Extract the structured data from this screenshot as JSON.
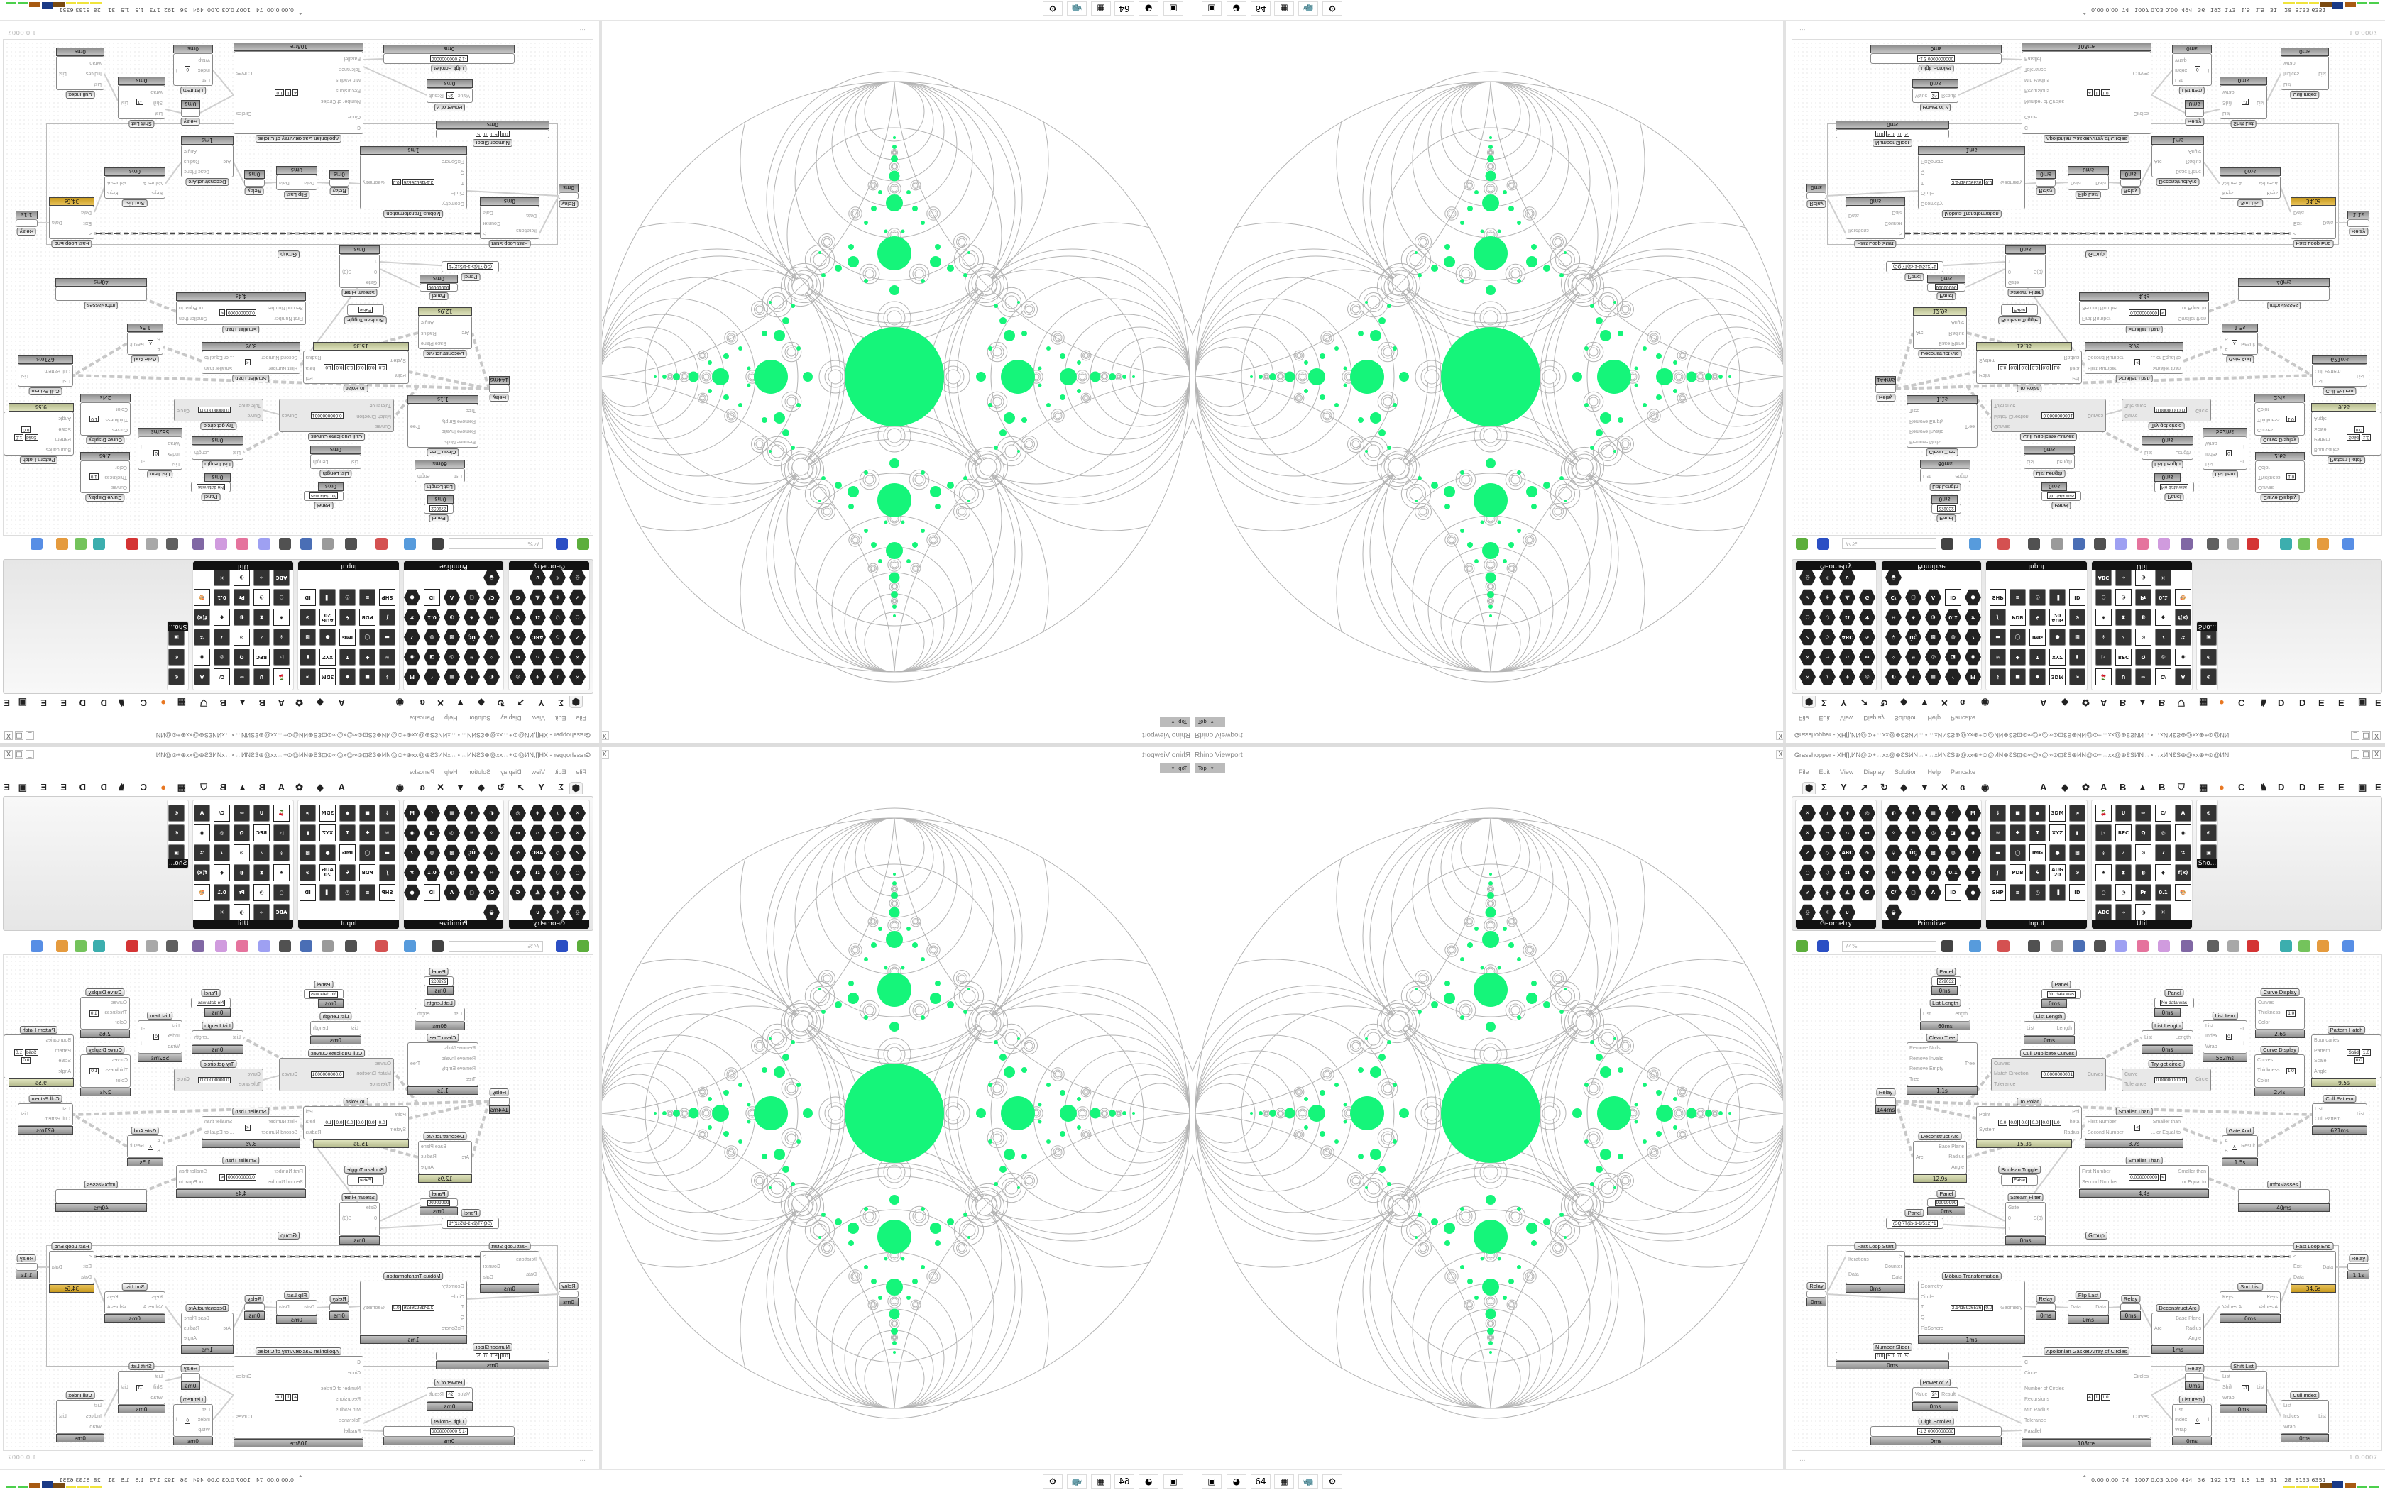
{
  "rhino": {
    "title": "Rhino Viewport",
    "close": "X",
    "view": "Top",
    "view_arrow": "▾"
  },
  "gh": {
    "title": "Grasshopper - XH[],ИN@⊙+↔xx@⊕ƐSИN↔×↔xИNƐS⊕@xx⊕+⊙@ИN⊕ƐS⊡⊙∞@x@∞⊙⊡ƐS⊕ИN@⊙+↔xx@⊕ƐSИN↔×↔xИNƐS⊕@xx⊕+⊙@ИN,",
    "window_controls": [
      "_",
      "□",
      "X"
    ],
    "menu": [
      "File",
      "Edit",
      "View",
      "Display",
      "Solution",
      "Help",
      "Pancake"
    ],
    "tabs": [
      {
        "icon": "params-hex-icon",
        "glyph": "⬢"
      },
      {
        "icon": "maths-sigma-icon",
        "glyph": "Σ"
      },
      {
        "icon": "sets-tree-icon",
        "glyph": "Y"
      },
      {
        "icon": "vector-arrow-icon",
        "glyph": "➚"
      },
      {
        "icon": "curve-icon",
        "glyph": "↻"
      },
      {
        "icon": "surface-icon",
        "glyph": "◆"
      },
      {
        "icon": "mesh-icon",
        "glyph": "▼"
      },
      {
        "icon": "intersect-icon",
        "glyph": "✕"
      },
      {
        "icon": "transform-icon",
        "glyph": "ɞ"
      },
      {
        "icon": "display-eye-icon",
        "glyph": "◉"
      },
      {
        "glyph": "A"
      },
      {
        "icon": "crystal-icon",
        "glyph": "◆"
      },
      {
        "icon": "flower-icon",
        "glyph": "✿"
      },
      {
        "glyph": "A"
      },
      {
        "glyph": "B"
      },
      {
        "icon": "mountain-icon",
        "glyph": "▲"
      },
      {
        "glyph": "B"
      },
      {
        "icon": "shield-icon",
        "glyph": "⛉"
      },
      {
        "icon": "grid-icon",
        "glyph": "▦"
      },
      {
        "icon": "orange-circle-icon",
        "glyph": "●"
      },
      {
        "glyph": "C"
      },
      {
        "icon": "bird-icon",
        "glyph": "♞"
      },
      {
        "glyph": "D"
      },
      {
        "glyph": "D"
      },
      {
        "glyph": "E"
      },
      {
        "glyph": "E"
      },
      {
        "icon": "dotted-square-icon",
        "glyph": "▣"
      },
      {
        "glyph": "E"
      }
    ],
    "ribbon": {
      "panels": [
        {
          "label": "Geometry",
          "expand": "+",
          "items": [
            "✕",
            "/",
            "+",
            "◎",
            "✕",
            "▱",
            "⌂",
            "↔",
            "↗",
            "◇",
            "ABC",
            "∿",
            "○",
            "⬡",
            "Ω",
            "✱",
            "↙",
            "◈",
            "⟁",
            "G",
            "◎",
            "✳",
            "∪"
          ]
        },
        {
          "label": "Primitive",
          "items": [
            "◐",
            "✶",
            "▦",
            "◜",
            "M",
            "✧",
            "≋",
            "◷",
            "◪",
            "◉",
            "⚲",
            "ÜÇ",
            "▩",
            "◍",
            "7",
            "↔",
            "♣",
            "◑",
            "0.1",
            "#",
            "C/",
            "▢",
            "A",
            "ID",
            "●",
            "◒"
          ]
        },
        {
          "label": "Input",
          "items": [
            "⇓",
            "■",
            "◆",
            "3DM",
            "∞",
            "≋",
            "✚",
            "T",
            "XYZ",
            "▮",
            "▬",
            "◯",
            "IMG",
            "●",
            "▩",
            "∫",
            "PDB",
            "ϟ",
            "AUG 20",
            "⊙",
            "SHP",
            "≡",
            "◷",
            "▐",
            "ID"
          ]
        },
        {
          "label": "Util",
          "items": [
            "🍒",
            "U",
            "⇨",
            "C/",
            "A",
            "▷",
            "REC",
            "Q",
            "◎",
            "◉",
            "⚶",
            "⁄",
            "⊘",
            "7",
            "⚗",
            "♣",
            "⧗",
            "◐",
            "◆",
            "f(x)",
            "○",
            "◔",
            "Pr",
            "0.1",
            "🎨",
            "ABC",
            "➜",
            "◑",
            "✕"
          ]
        },
        {
          "label": "Sho...",
          "items": [
            "⊙",
            "⊙",
            "▣"
          ]
        }
      ],
      "expand_glyph": "+"
    },
    "toolbar": {
      "zoom": "74%",
      "icons": [
        "open-file-icon",
        "save-icon",
        "zoom-extents-icon",
        "preview-eye-icon",
        "sketch-pen-icon",
        "cluster-icon",
        "email-icon",
        "gha-icon",
        "window-icon",
        "search-s-icon",
        "package-icon",
        "bulb-icon",
        "dna-icon",
        "wire-icon",
        "mesh-shaded-icon",
        "wireframe-icon",
        "red-shape-icon",
        "teal-shape-icon",
        "green-shape-icon",
        "orange-sphere-icon",
        "blue-sphere-icon"
      ]
    },
    "canvas": {
      "group_label": "Group"
    },
    "nodes": [
      {
        "title": "Panel",
        "in": [],
        "out": [],
        "vals": [
          "279032"
        ],
        "time": "0ms"
      },
      {
        "title": "List Length",
        "in": [
          "List"
        ],
        "out": [
          "Length"
        ],
        "time": "60ms"
      },
      {
        "title": "Clean Tree",
        "in": [
          "Remove Nulls",
          "Remove Invalid",
          "Remove Empty",
          "Tree"
        ],
        "out": [
          "Tree"
        ],
        "time": "1.1s"
      },
      {
        "title": "Panel",
        "in": [],
        "out": [],
        "vals": [
          "No data was"
        ],
        "time": "0ms"
      },
      {
        "title": "List Length",
        "in": [
          "List"
        ],
        "out": [
          "Length"
        ],
        "time": "0ms"
      },
      {
        "title": "Cull Duplicate Curves",
        "in": [
          "Curves",
          "Match Direction",
          "Tolerance"
        ],
        "out": [
          "Curves"
        ],
        "vals": [
          "0.0000000001"
        ]
      },
      {
        "title": "Panel",
        "in": [],
        "out": [],
        "vals": [
          "No data was"
        ],
        "time": "0ms"
      },
      {
        "title": "List Length",
        "in": [
          "List"
        ],
        "out": [
          "Length"
        ],
        "time": "0ms"
      },
      {
        "title": "Try get circle",
        "in": [
          "Curve",
          "Tolerance"
        ],
        "out": [
          "Circle"
        ],
        "vals": [
          "0.0000000001"
        ]
      },
      {
        "title": "List Item",
        "in": [
          "List",
          "Index",
          "Wrap"
        ],
        "out": [
          "-1",
          "i"
        ],
        "vals": [
          "0"
        ],
        "time": "562ms"
      },
      {
        "title": "Curve Display",
        "in": [
          "Curves",
          "Thickness",
          "Color"
        ],
        "out": [],
        "vals": [
          "1.0"
        ],
        "time": "2.6s"
      },
      {
        "title": "Curve Display",
        "in": [
          "Curves",
          "Thickness",
          "Color"
        ],
        "out": [],
        "vals": [
          "1.0"
        ],
        "time": "2.4s"
      },
      {
        "title": "Pattern Hatch",
        "in": [
          "Boundaries",
          "Pattern",
          "Scale",
          "Angle"
        ],
        "out": [],
        "vals": [
          "Solid",
          "1.0",
          "0.0"
        ],
        "time": "9.5s"
      },
      {
        "title": "Relay",
        "in": [],
        "out": [],
        "time": "144ms"
      },
      {
        "title": "To Polar",
        "in": [
          "Point",
          "System"
        ],
        "out": [
          "Phi",
          "Theta",
          "Radius"
        ],
        "vals": [
          "0.0",
          "0.0",
          "0.0",
          "0.0",
          "0.0",
          "1.0"
        ],
        "time": "15.3s"
      },
      {
        "title": "Smaller Than",
        "in": [
          "First Number",
          "Second Number"
        ],
        "out": [
          "Smaller than",
          "... or Equal to"
        ],
        "vals": [
          "<"
        ],
        "time": "3.7s"
      },
      {
        "title": "Cull Pattern",
        "in": [
          "List",
          "Cull Pattern"
        ],
        "out": [
          "List"
        ],
        "time": "621ms"
      },
      {
        "title": "Gate And",
        "in": [
          "A",
          "B"
        ],
        "out": [
          "Result"
        ],
        "vals": [
          "∧"
        ],
        "time": "1.5s"
      },
      {
        "title": "Deconstruct Arc",
        "in": [
          "Arc"
        ],
        "out": [
          "Base Plane",
          "Radius",
          "Angle"
        ],
        "time": "12.9s"
      },
      {
        "title": "Boolean Toggle",
        "in": [],
        "out": [],
        "vals": [
          "False"
        ]
      },
      {
        "title": "Smaller Than",
        "in": [
          "First Number",
          "Second Number"
        ],
        "out": [
          "Smaller than",
          "... or Equal to"
        ],
        "vals": [
          "0.000000000",
          "<"
        ],
        "time": "4.4s"
      },
      {
        "title": "InfoGlasses",
        "in": [],
        "out": [],
        "time": "40ms"
      },
      {
        "title": "Panel",
        "in": [],
        "out": [],
        "vals": [
          "99999999"
        ],
        "time": "0ms"
      },
      {
        "title": "Stream Filter",
        "in": [
          "Gate",
          "0",
          "1"
        ],
        "out": [
          "S(0)"
        ],
        "time": "0ms"
      },
      {
        "title": "Panel",
        "in": [],
        "out": [],
        "vals": [
          "(SQRT(2)-1-1/512)*1"
        ]
      },
      {
        "title": "Fast Loop Start",
        "in": [
          "Iterations",
          "Data"
        ],
        "out": [
          ">",
          "Counter",
          "Data"
        ],
        "time": "0ms"
      },
      {
        "title": "Fast Loop End",
        "in": [
          "<",
          "Exit",
          "Data"
        ],
        "out": [
          "Data"
        ],
        "time": "34.6s"
      },
      {
        "title": "Relay",
        "in": [],
        "out": [],
        "time": "1.1s"
      },
      {
        "title": "Relay",
        "in": [],
        "out": [],
        "time": "0ms"
      },
      {
        "title": "Möbius Transformation",
        "in": [
          "Geometry",
          "Circle",
          "T",
          "Q",
          "FixSphere"
        ],
        "out": [
          "Geometry"
        ],
        "vals": [
          "3.1415926536",
          "0.0"
        ],
        "time": "1ms"
      },
      {
        "title": "Relay",
        "in": [],
        "out": [],
        "time": "0ms"
      },
      {
        "title": "Flip Last",
        "in": [
          "Data"
        ],
        "out": [
          "Data"
        ],
        "time": "0ms"
      },
      {
        "title": "Relay",
        "in": [],
        "out": [],
        "time": "0ms"
      },
      {
        "title": "Deconstruct Arc",
        "in": [
          "Arc"
        ],
        "out": [
          "Base Plane",
          "Radius",
          "Angle"
        ],
        "time": "1ms"
      },
      {
        "title": "Sort List",
        "in": [
          "Keys",
          "Values A"
        ],
        "out": [
          "Keys",
          "Values A"
        ],
        "time": "0ms"
      },
      {
        "title": "Number Slider",
        "in": [],
        "out": [],
        "vals": [
          "0.0",
          "5.0",
          "0",
          "5"
        ],
        "time": "0ms"
      },
      {
        "title": "Apollonian Gasket Array of Circles",
        "in": [
          "C",
          "Circle",
          "",
          "Number of Circles",
          "Recursions",
          "Min Radius",
          "Tolerance",
          "Parallel"
        ],
        "out": [
          "Circles",
          "Curves"
        ],
        "vals": [
          "4",
          "1",
          "1.0"
        ],
        "time": "108ms"
      },
      {
        "title": "Relay",
        "in": [],
        "out": [],
        "time": "0ms"
      },
      {
        "title": "Shift List",
        "in": [
          "List",
          "Shift",
          "Wrap"
        ],
        "out": [
          "List"
        ],
        "vals": [
          "-1"
        ],
        "time": "0ms"
      },
      {
        "title": "Power of 2",
        "in": [
          "Value"
        ],
        "out": [
          "Result"
        ],
        "vals": [
          "2ᴬ"
        ],
        "time": "0ms"
      },
      {
        "title": "List Item",
        "in": [
          "List",
          "Index",
          "Wrap"
        ],
        "out": [
          "i"
        ],
        "vals": [
          "0"
        ],
        "time": "0ms"
      },
      {
        "title": "Cull Index",
        "in": [
          "List",
          "Indices",
          "Wrap"
        ],
        "out": [
          "List"
        ],
        "time": "0ms"
      },
      {
        "title": "Digit Scroller",
        "in": [],
        "out": [],
        "vals": [
          "-1 3 0000000000"
        ],
        "time": "0ms"
      }
    ],
    "status": {
      "left": "...",
      "version": "1.0.0007"
    }
  },
  "taskbar": {
    "apps": [
      {
        "icon": "terminal-icon",
        "glyph": "▣"
      },
      {
        "icon": "firefox-icon",
        "glyph": "◕"
      },
      {
        "icon": "save-64-icon",
        "glyph": "64"
      },
      {
        "icon": "calculator-icon",
        "glyph": "▦"
      },
      {
        "icon": "rhino-icon",
        "glyph": "🦏"
      },
      {
        "icon": "settings-gear-icon",
        "glyph": "⚙"
      }
    ],
    "tray_arrow": "⌃",
    "stats": "0.00 0.00  74   1007 0.03 0.00  494   36   192  173   1.5   1.5   31    28  5133 6351"
  },
  "colors": {
    "gasket_fill": "#15f57a",
    "gasket_stroke": "#b4b4b4",
    "bar_olive": "#c8cda4",
    "bar_gold": "#d9ae3a",
    "taskbar_bars": [
      "#f0e43c",
      "#7a4a10",
      "#1a3a86",
      "#a85a12",
      "#4cd04c"
    ]
  }
}
